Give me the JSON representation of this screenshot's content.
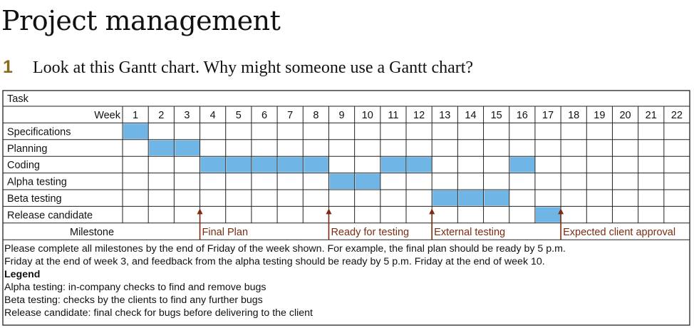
{
  "title": "Project management",
  "question": {
    "number": "1",
    "text": "Look at this Gantt chart. Why might someone use a Gantt chart?"
  },
  "colors": {
    "bar_fill": "#6fb6e6",
    "milestone": "#7a2d12",
    "border": "#222222"
  },
  "chart_data": {
    "type": "table",
    "header_label": "Task",
    "week_label": "Week",
    "weeks": [
      "1",
      "2",
      "3",
      "4",
      "5",
      "6",
      "7",
      "8",
      "9",
      "10",
      "11",
      "12",
      "13",
      "14",
      "15",
      "16",
      "17",
      "18",
      "19",
      "20",
      "21",
      "22"
    ],
    "tasks": [
      {
        "name": "Specifications",
        "weeks": [
          1
        ]
      },
      {
        "name": "Planning",
        "weeks": [
          2,
          3
        ]
      },
      {
        "name": "Coding",
        "weeks": [
          4,
          5,
          6,
          7,
          8,
          11,
          12,
          16
        ]
      },
      {
        "name": "Alpha testing",
        "weeks": [
          9,
          10
        ]
      },
      {
        "name": "Beta testing",
        "weeks": [
          13,
          14,
          15
        ]
      },
      {
        "name": "Release candidate",
        "weeks": [
          17
        ]
      }
    ],
    "milestone_label": "Milestone",
    "milestones": [
      {
        "week": 3,
        "label": "Final Plan"
      },
      {
        "week": 8,
        "label": "Ready for testing"
      },
      {
        "week": 12,
        "label": "External testing"
      },
      {
        "week": 17,
        "label": "Expected client approval"
      }
    ]
  },
  "notes": {
    "line1": "Please complete all milestones by the end of Friday of the week shown. For example, the final plan should be ready by 5 p.m.",
    "line2": "Friday at the end of week 3, and feedback from the alpha testing should be ready by 5 p.m. Friday at the end of week 10.",
    "legend_title": "Legend",
    "legend": [
      "Alpha testing: in-company checks to find and remove bugs",
      "Beta testing: checks by the clients to find any further bugs",
      "Release candidate: final check for bugs before delivering to the client"
    ]
  }
}
